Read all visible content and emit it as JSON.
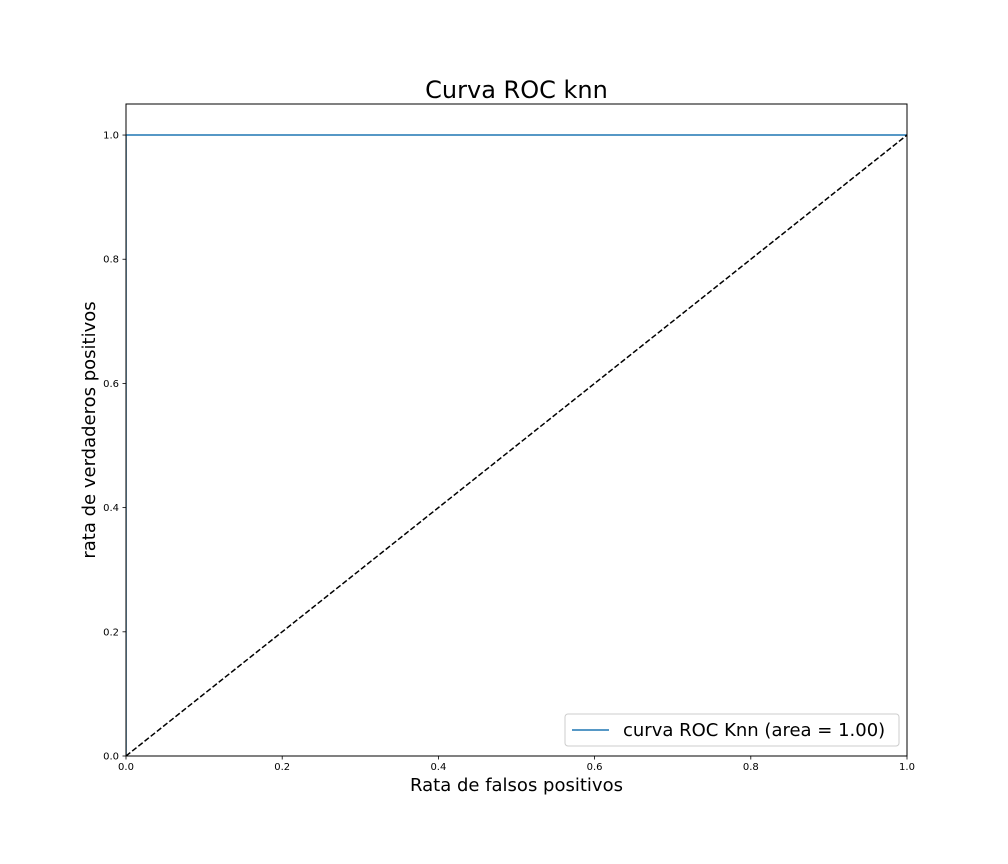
{
  "chart_data": {
    "type": "line",
    "title": "Curva ROC knn",
    "xlabel": "Rata de falsos positivos",
    "ylabel": "rata de verdaderos positivos",
    "xlim": [
      0.0,
      1.0
    ],
    "ylim": [
      0.0,
      1.05
    ],
    "grid": false,
    "legend_position": "lower-right",
    "xticks": [
      "0.0",
      "0.2",
      "0.4",
      "0.6",
      "0.8",
      "1.0"
    ],
    "yticks": [
      "0.0",
      "0.2",
      "0.4",
      "0.6",
      "0.8",
      "1.0"
    ],
    "series": [
      {
        "name": "curva ROC Knn  (area = 1.00)",
        "x": [
          0.0,
          0.0,
          1.0
        ],
        "y": [
          0.0,
          1.0,
          1.0
        ],
        "color": "#1f77b4",
        "style": "solid"
      },
      {
        "x": [
          0.0,
          1.0
        ],
        "y": [
          0.0,
          1.0
        ],
        "color": "#000000",
        "style": "dashed"
      }
    ]
  }
}
